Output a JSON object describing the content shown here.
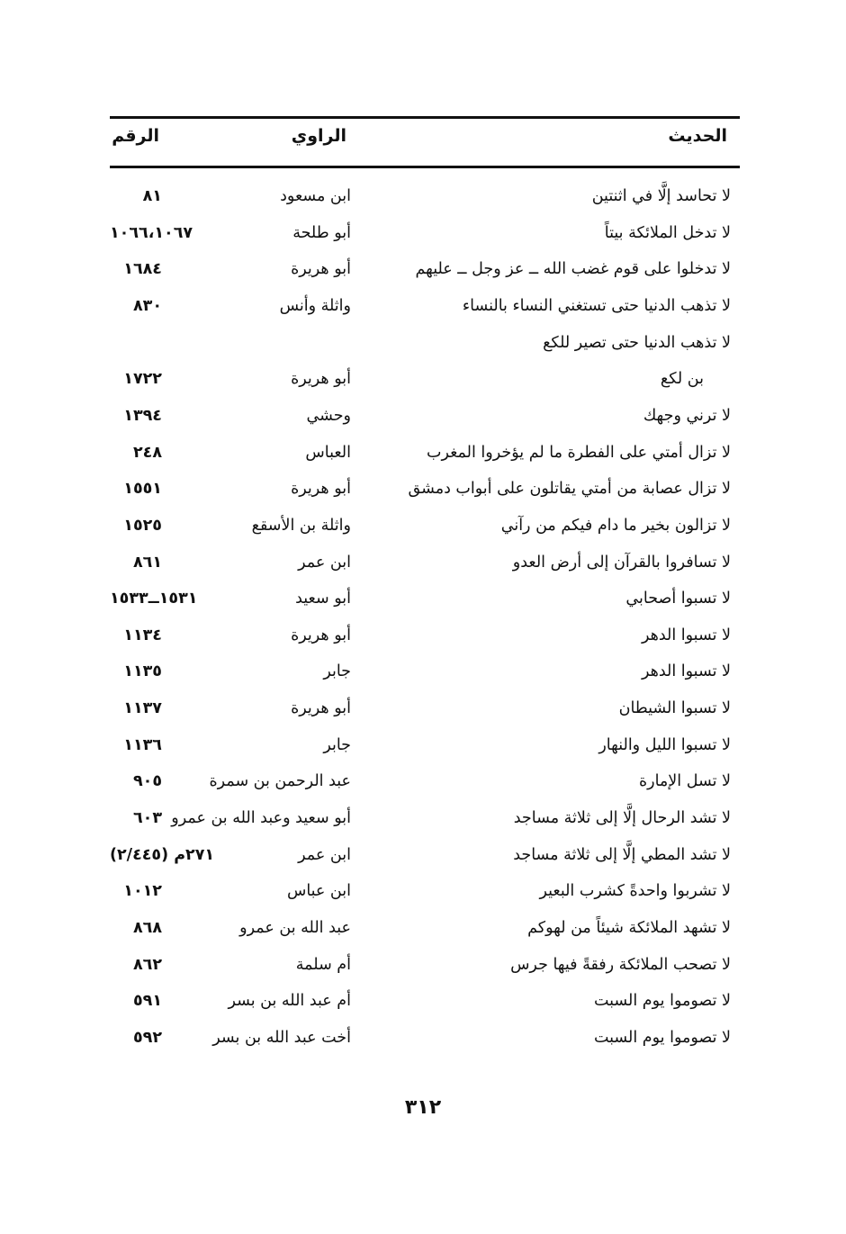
{
  "header": {
    "hadith": "الحديث",
    "narrator": "الراوي",
    "number": "الرقم"
  },
  "rows": [
    {
      "hadith": "لا تحاسد إلَّا في اثنتين",
      "narrator": "ابن مسعود",
      "number": "٨١"
    },
    {
      "hadith": "لا تدخل الملائكة بيتاً",
      "narrator": "أبو طلحة",
      "number": "١٠٦٦،١٠٦٧"
    },
    {
      "hadith": "لا تدخلوا على قوم غضب الله ــ عز وجل ــ عليهم",
      "narrator": "أبو هريرة",
      "number": "١٦٨٤"
    },
    {
      "hadith": "لا تذهب الدنيا حتى تستغني النساء بالنساء",
      "narrator": "واثلة وأنس",
      "number": "٨٣٠"
    },
    {
      "hadith": "لا تذهب الدنيا حتى تصير للكع",
      "narrator": "",
      "number": ""
    },
    {
      "hadith": "بن لكع",
      "narrator": "أبو هريرة",
      "number": "١٧٢٢",
      "continuation": true
    },
    {
      "hadith": "لا ترني وجهك",
      "narrator": "وحشي",
      "number": "١٣٩٤"
    },
    {
      "hadith": "لا تزال أمتي على الفطرة ما لم يؤخروا المغرب",
      "narrator": "العباس",
      "number": "٢٤٨"
    },
    {
      "hadith": "لا تزال عصابة من أمتي يقاتلون على أبواب دمشق",
      "narrator": "أبو هريرة",
      "number": "١٥٥١"
    },
    {
      "hadith": "لا تزالون بخير ما دام فيكم من رآني",
      "narrator": "واثلة بن الأسقع",
      "number": "١٥٢٥"
    },
    {
      "hadith": "لا تسافروا بالقرآن إلى أرض العدو",
      "narrator": "ابن عمر",
      "number": "٨٦١"
    },
    {
      "hadith": "لا تسبوا أصحابي",
      "narrator": "أبو سعيد",
      "number": "١٥٣١ــ١٥٣٣"
    },
    {
      "hadith": "لا تسبوا الدهر",
      "narrator": "أبو هريرة",
      "number": "١١٣٤"
    },
    {
      "hadith": "لا تسبوا الدهر",
      "narrator": "جابر",
      "number": "١١٣٥"
    },
    {
      "hadith": "لا تسبوا الشيطان",
      "narrator": "أبو هريرة",
      "number": "١١٣٧"
    },
    {
      "hadith": "لا تسبوا الليل والنهار",
      "narrator": "جابر",
      "number": "١١٣٦"
    },
    {
      "hadith": "لا تسل الإمارة",
      "narrator": "عبد الرحمن بن سمرة",
      "number": "٩٠٥"
    },
    {
      "hadith": "لا تشد الرحال إلَّا إلى ثلاثة مساجد",
      "narrator": "أبو سعيد وعبد الله بن عمرو",
      "number": "٦٠٣"
    },
    {
      "hadith": "لا تشد المطي إلَّا إلى ثلاثة مساجد",
      "narrator": "ابن عمر",
      "number": "٢٧١م (٢/٤٤٥)"
    },
    {
      "hadith": "لا تشربوا واحدةً كشرب البعير",
      "narrator": "ابن عباس",
      "number": "١٠١٢"
    },
    {
      "hadith": "لا تشهد الملائكة شيئاً من لهوكم",
      "narrator": "عبد الله بن عمرو",
      "number": "٨٦٨"
    },
    {
      "hadith": "لا تصحب الملائكة رفقةً فيها جرس",
      "narrator": "أم سلمة",
      "number": "٨٦٢"
    },
    {
      "hadith": "لا تصوموا يوم السبت",
      "narrator": "أم عبد الله بن بسر",
      "number": "٥٩١"
    },
    {
      "hadith": "لا تصوموا يوم السبت",
      "narrator": "أخت عبد الله بن بسر",
      "number": "٥٩٢"
    }
  ],
  "page_number": "٣١٢"
}
